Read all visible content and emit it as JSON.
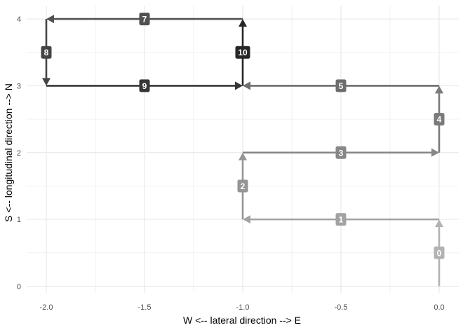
{
  "chart_data": {
    "type": "line",
    "title": "",
    "xlabel": "W <--  lateral direction  --> E",
    "ylabel": "S <--  longitudinal direction  --> N",
    "xlim": [
      -2.1,
      0.1
    ],
    "ylim": [
      -0.1,
      4.2
    ],
    "x_ticks": [
      -2.0,
      -1.5,
      -1.0,
      -0.5,
      0.0
    ],
    "x_tick_labels": [
      "-2.0",
      "-1.5",
      "-1.0",
      "-0.5",
      "0.0"
    ],
    "y_ticks": [
      0,
      1,
      2,
      3,
      4
    ],
    "y_tick_labels": [
      "0",
      "1",
      "2",
      "3",
      "4"
    ],
    "grid": true,
    "legend": "none",
    "steps": [
      {
        "label": "0",
        "from": [
          0,
          0
        ],
        "to": [
          0,
          1
        ],
        "color": "#b3b3b3"
      },
      {
        "label": "1",
        "from": [
          0,
          1
        ],
        "to": [
          -1,
          1
        ],
        "color": "#a2a2a2"
      },
      {
        "label": "2",
        "from": [
          -1,
          1
        ],
        "to": [
          -1,
          2
        ],
        "color": "#959595"
      },
      {
        "label": "3",
        "from": [
          -1,
          2
        ],
        "to": [
          0,
          2
        ],
        "color": "#878787"
      },
      {
        "label": "4",
        "from": [
          0,
          2
        ],
        "to": [
          0,
          3
        ],
        "color": "#7a7a7a"
      },
      {
        "label": "5",
        "from": [
          0,
          3
        ],
        "to": [
          -1,
          3
        ],
        "color": "#6d6d6d"
      },
      {
        "label": "7",
        "from": [
          -1,
          4
        ],
        "to": [
          -2,
          4
        ],
        "color": "#515151"
      },
      {
        "label": "8",
        "from": [
          -2,
          4
        ],
        "to": [
          -2,
          3
        ],
        "color": "#444444"
      },
      {
        "label": "9",
        "from": [
          -2,
          3
        ],
        "to": [
          -1,
          3
        ],
        "color": "#363636"
      },
      {
        "label": "10",
        "from": [
          -1,
          3
        ],
        "to": [
          -1,
          4
        ],
        "color": "#262626"
      }
    ]
  }
}
